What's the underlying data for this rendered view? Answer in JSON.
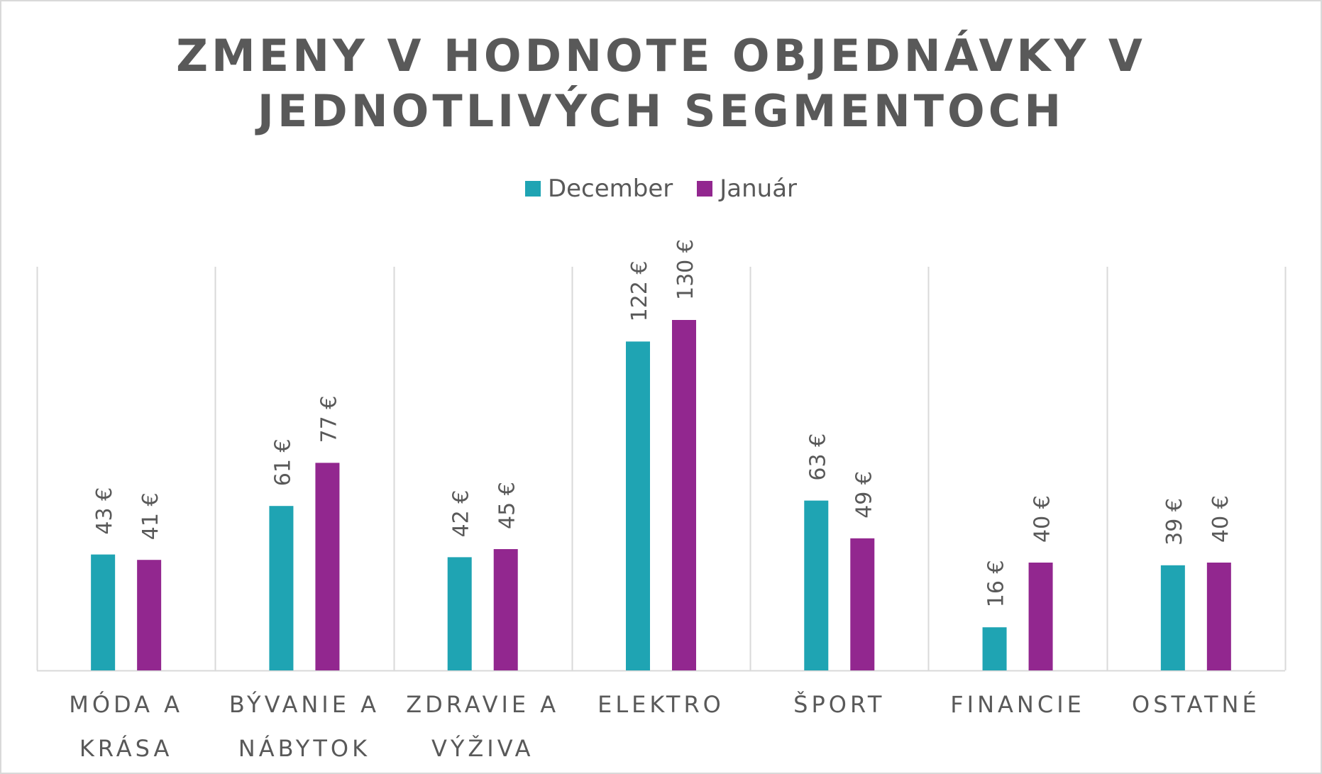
{
  "chart_data": {
    "type": "bar",
    "title": "ZMENY V HODNOTE OBJEDNÁVKY V JEDNOTLIVÝCH SEGMENTOCH",
    "categories": [
      "MÓDA A KRÁSA",
      "BÝVANIE A NÁBYTOK",
      "ZDRAVIE A VÝŽIVA",
      "ELEKTRO",
      "ŠPORT",
      "FINANCIE",
      "OSTATNÉ"
    ],
    "series": [
      {
        "name": "December",
        "color": "#1fa4b3",
        "values": [
          43,
          61,
          42,
          122,
          63,
          16,
          39
        ],
        "labels": [
          "43 €",
          "61 €",
          "42 €",
          "122 €",
          "63 €",
          "16 €",
          "39 €"
        ]
      },
      {
        "name": "Január",
        "color": "#92278f",
        "values": [
          41,
          77,
          45,
          130,
          49,
          40,
          40
        ],
        "labels": [
          "41 €",
          "77 €",
          "45 €",
          "130 €",
          "49 €",
          "40 €",
          "40 €"
        ]
      }
    ],
    "legend_position": "top",
    "grid": "vertical category separators",
    "data_label_unit": "€"
  }
}
